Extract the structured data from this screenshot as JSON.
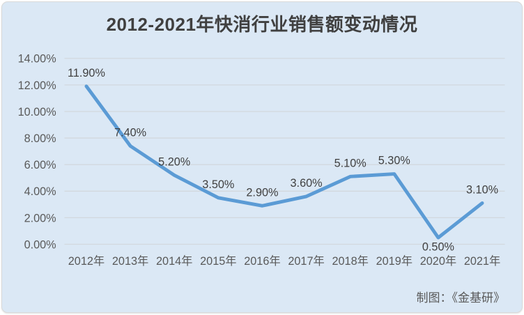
{
  "chart_data": {
    "type": "line",
    "title": "2012-2021年快消行业销售额变动情况",
    "categories": [
      "2012年",
      "2013年",
      "2014年",
      "2015年",
      "2016年",
      "2017年",
      "2018年",
      "2019年",
      "2020年",
      "2021年"
    ],
    "values": [
      11.9,
      7.4,
      5.2,
      3.5,
      2.9,
      3.6,
      5.1,
      5.3,
      0.5,
      3.1
    ],
    "point_labels": [
      "11.90%",
      "7.40%",
      "5.20%",
      "3.50%",
      "2.90%",
      "3.60%",
      "5.10%",
      "5.30%",
      "0.50%",
      "3.10%"
    ],
    "label_positions": [
      "above",
      "above",
      "above",
      "above",
      "above",
      "above",
      "above",
      "above",
      "below",
      "above"
    ],
    "y_ticks": [
      "0.00%",
      "2.00%",
      "4.00%",
      "6.00%",
      "8.00%",
      "10.00%",
      "12.00%",
      "14.00%"
    ],
    "ylim": [
      0,
      14
    ],
    "xlabel": "",
    "ylabel": "",
    "grid": true,
    "legend": "none"
  },
  "footer": {
    "credit": "制图：《金基研》"
  },
  "colors": {
    "line": "#5b9bd5",
    "card_background": "#dbe8f5",
    "grid": "#d2d8de",
    "axis_text": "#595959",
    "title_text": "#404040",
    "label_text": "#404040",
    "page_background": "#ffffff",
    "card_border": "#d9d9d9"
  }
}
